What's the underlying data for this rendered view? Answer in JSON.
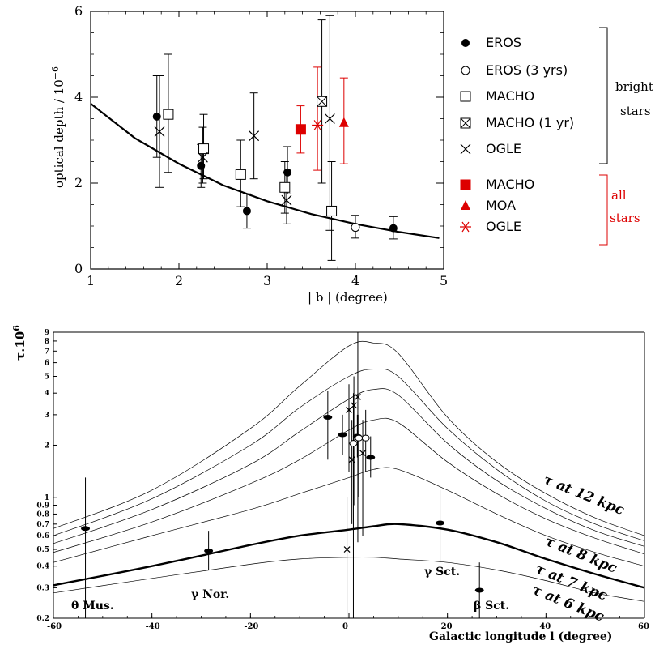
{
  "chart_data": [
    {
      "type": "scatter",
      "title": "",
      "xlabel": "| b | (degree)",
      "ylabel": "optical depth / 10",
      "ylabel_exponent": "−6",
      "xlim": [
        1,
        5
      ],
      "ylim": [
        0,
        6
      ],
      "xticks": [
        "1",
        "2",
        "3",
        "4",
        "5"
      ],
      "yticks": [
        "0",
        "2",
        "4",
        "6"
      ],
      "curve": {
        "x": [
          1.0,
          1.5,
          2.0,
          2.5,
          3.0,
          3.5,
          4.0,
          4.5,
          4.95
        ],
        "y": [
          3.85,
          3.05,
          2.45,
          1.95,
          1.58,
          1.28,
          1.05,
          0.86,
          0.72
        ]
      },
      "series": [
        {
          "name": "EROS",
          "color": "#000000",
          "marker": "filled-circle",
          "points": [
            {
              "x": 1.75,
              "y": 3.55,
              "lo": 2.6,
              "hi": 4.5
            },
            {
              "x": 2.25,
              "y": 2.4,
              "lo": 1.9,
              "hi": 2.9
            },
            {
              "x": 2.77,
              "y": 1.35,
              "lo": 0.95,
              "hi": 1.75
            },
            {
              "x": 3.23,
              "y": 2.25,
              "lo": 1.75,
              "hi": 2.85
            },
            {
              "x": 4.43,
              "y": 0.95,
              "lo": 0.7,
              "hi": 1.22
            }
          ]
        },
        {
          "name": "EROS (3 yrs)",
          "color": "#000000",
          "marker": "open-circle",
          "points": [
            {
              "x": 4.0,
              "y": 0.97,
              "lo": 0.72,
              "hi": 1.25
            }
          ]
        },
        {
          "name": "MACHO",
          "color": "#000000",
          "marker": "open-square",
          "points": [
            {
              "x": 1.88,
              "y": 3.6,
              "lo": 2.25,
              "hi": 5.0
            },
            {
              "x": 2.28,
              "y": 2.8,
              "lo": 2.1,
              "hi": 3.6
            },
            {
              "x": 2.7,
              "y": 2.2,
              "lo": 1.45,
              "hi": 3.0
            },
            {
              "x": 3.2,
              "y": 1.9,
              "lo": 1.3,
              "hi": 2.5
            },
            {
              "x": 3.73,
              "y": 1.35,
              "lo": 0.2,
              "hi": 2.5
            }
          ]
        },
        {
          "name": "MACHO (1 yr)",
          "color": "#000000",
          "marker": "crossed-square",
          "points": [
            {
              "x": 3.62,
              "y": 3.9,
              "lo": 2.0,
              "hi": 5.8
            }
          ]
        },
        {
          "name": "OGLE",
          "color": "#000000",
          "marker": "cross",
          "points": [
            {
              "x": 1.78,
              "y": 3.2,
              "lo": 1.9,
              "hi": 4.5
            },
            {
              "x": 2.27,
              "y": 2.6,
              "lo": 2.0,
              "hi": 3.3
            },
            {
              "x": 2.85,
              "y": 3.1,
              "lo": 2.1,
              "hi": 4.1
            },
            {
              "x": 3.22,
              "y": 1.6,
              "lo": 1.05,
              "hi": 2.25
            },
            {
              "x": 3.71,
              "y": 3.5,
              "lo": 0.9,
              "hi": 5.9
            }
          ]
        },
        {
          "name": "MACHO",
          "color": "#dd0000",
          "marker": "filled-square",
          "points": [
            {
              "x": 3.38,
              "y": 3.25,
              "lo": 2.7,
              "hi": 3.8
            }
          ]
        },
        {
          "name": "MOA",
          "color": "#dd0000",
          "marker": "filled-triangle",
          "points": [
            {
              "x": 3.87,
              "y": 3.4,
              "lo": 2.45,
              "hi": 4.45
            }
          ]
        },
        {
          "name": "OGLE",
          "color": "#dd0000",
          "marker": "asterisk",
          "points": [
            {
              "x": 3.57,
              "y": 3.35,
              "lo": 2.3,
              "hi": 4.7
            }
          ]
        }
      ],
      "legend_placement": "right",
      "legend_groups": [
        {
          "label": "bright",
          "label2": "stars",
          "color": "#000000"
        },
        {
          "label": "all",
          "label2": "stars",
          "color": "#dd0000"
        }
      ]
    },
    {
      "type": "line",
      "title": "",
      "xlabel": "Galactic longitude l (degree)",
      "ylabel": "τ.10",
      "ylabel_exponent": "6",
      "y_scale": "log",
      "xlim": [
        -60,
        60
      ],
      "ylim": [
        0.2,
        9
      ],
      "xticks": [
        "-60",
        "-40",
        "-20",
        "0",
        "20",
        "40",
        "60"
      ],
      "yticks": [
        "0.2",
        "0.3",
        "0.4",
        "0.5",
        "0.6",
        "0.7",
        "0.8",
        "0.9",
        "1",
        "2",
        "3",
        "4",
        "5",
        "6",
        "7",
        "8",
        "9"
      ],
      "x": [
        -60,
        -40,
        -20,
        -10,
        0,
        5,
        10,
        20,
        30,
        40,
        50,
        60
      ],
      "series": [
        {
          "name": "τ at 6 kpc",
          "bold": false,
          "values": [
            0.28,
            0.34,
            0.41,
            0.44,
            0.45,
            0.45,
            0.44,
            0.42,
            0.38,
            0.33,
            0.28,
            0.25
          ]
        },
        {
          "name": "τ at 7 kpc",
          "bold": false,
          "values": [
            0.42,
            0.6,
            0.85,
            1.05,
            1.3,
            1.45,
            1.45,
            1.1,
            0.8,
            0.6,
            0.48,
            0.4
          ]
        },
        {
          "name": "τ at 8 kpc",
          "bold": true,
          "values": [
            0.31,
            0.4,
            0.53,
            0.6,
            0.65,
            0.68,
            0.7,
            0.65,
            0.55,
            0.44,
            0.36,
            0.3
          ]
        },
        {
          "name": "",
          "bold": false,
          "values": [
            0.48,
            0.72,
            1.2,
            1.65,
            2.45,
            2.8,
            2.7,
            1.6,
            1.05,
            0.75,
            0.58,
            0.47
          ]
        },
        {
          "name": "",
          "bold": false,
          "values": [
            0.54,
            0.85,
            1.55,
            2.4,
            3.7,
            4.2,
            3.9,
            2.05,
            1.25,
            0.86,
            0.64,
            0.52
          ]
        },
        {
          "name": "",
          "bold": false,
          "values": [
            0.6,
            0.98,
            2.0,
            3.3,
            5.0,
            5.5,
            5.0,
            2.5,
            1.45,
            0.95,
            0.7,
            0.56
          ]
        },
        {
          "name": "τ at 12 kpc",
          "bold": false,
          "values": [
            0.66,
            1.1,
            2.5,
            4.4,
            7.5,
            7.8,
            6.8,
            2.9,
            1.6,
            1.05,
            0.76,
            0.6
          ]
        }
      ],
      "points": [
        {
          "x": -53.5,
          "y": 0.66,
          "lo": 0.2,
          "hi": 1.3,
          "marker": "filled-ellipse"
        },
        {
          "x": -28.5,
          "y": 0.49,
          "lo": 0.38,
          "hi": 0.64,
          "marker": "filled-ellipse"
        },
        {
          "x": -4.3,
          "y": 2.9,
          "lo": 1.65,
          "hi": 4.1,
          "marker": "filled-ellipse"
        },
        {
          "x": -1.3,
          "y": 2.3,
          "lo": 1.75,
          "hi": 3.0,
          "marker": "filled-ellipse"
        },
        {
          "x": 1.7,
          "y": 2.25,
          "lo": 1.7,
          "hi": 3.0,
          "marker": "filled-ellipse"
        },
        {
          "x": 4.4,
          "y": 1.7,
          "lo": 1.3,
          "hi": 2.25,
          "marker": "filled-ellipse"
        },
        {
          "x": 18.5,
          "y": 0.71,
          "lo": 0.42,
          "hi": 1.1,
          "marker": "filled-ellipse"
        },
        {
          "x": 26.5,
          "y": 0.29,
          "lo": 0.2,
          "hi": 0.42,
          "marker": "filled-ellipse"
        },
        {
          "x": 3.4,
          "y": 2.2,
          "lo": 1.4,
          "hi": 3.2,
          "marker": "open-ellipse"
        },
        {
          "x": 0.9,
          "y": 2.05,
          "lo": 0.2,
          "hi": 4.0,
          "marker": "open-ellipse"
        },
        {
          "x": 2.0,
          "y": 2.2,
          "lo": 1.0,
          "hi": 3.0,
          "marker": "open-ellipse"
        },
        {
          "x": 1.8,
          "y": 3.8,
          "lo": 0.55,
          "hi": 9.0,
          "marker": "cross"
        },
        {
          "x": 1.0,
          "y": 3.4,
          "lo": 0.9,
          "hi": 5.0,
          "marker": "cross"
        },
        {
          "x": 0.0,
          "y": 3.2,
          "lo": 1.4,
          "hi": 4.5,
          "marker": "cross"
        },
        {
          "x": 2.8,
          "y": 1.8,
          "lo": 0.6,
          "hi": 2.8,
          "marker": "cross"
        },
        {
          "x": 0.6,
          "y": 1.65,
          "lo": 0.7,
          "hi": 2.8,
          "marker": "cross"
        },
        {
          "x": -0.4,
          "y": 0.5,
          "lo": 0.2,
          "hi": 1.0,
          "marker": "cross"
        }
      ],
      "annotations": [
        "θ Mus.",
        "γ Nor.",
        "γ Sct.",
        "β Sct."
      ]
    }
  ]
}
